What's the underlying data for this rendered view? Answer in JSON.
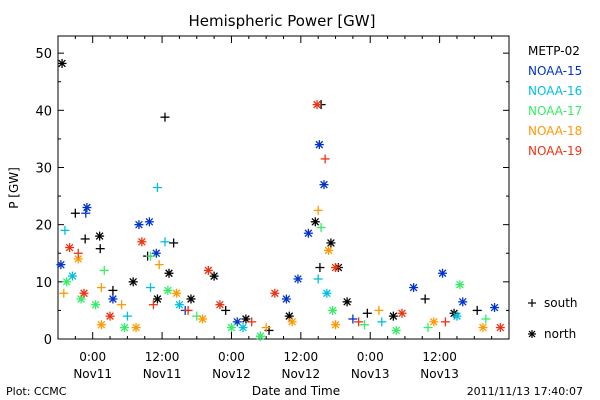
{
  "chart_data": {
    "type": "scatter",
    "title": "Hemispheric Power [GW]",
    "xlabel": "Date and Time",
    "ylabel": "P [GW]",
    "ylim": [
      0,
      53
    ],
    "xlim": [
      -6,
      72
    ],
    "x_unit": "hours from 2011-11-11 00:00 UT",
    "grid": false,
    "legend_position": "right",
    "x_ticks": [
      {
        "x": 0,
        "time": "0:00",
        "date": "Nov11"
      },
      {
        "x": 12,
        "time": "12:00",
        "date": "Nov11"
      },
      {
        "x": 24,
        "time": "0:00",
        "date": "Nov12"
      },
      {
        "x": 36,
        "time": "12:00",
        "date": "Nov12"
      },
      {
        "x": 48,
        "time": "0:00",
        "date": "Nov13"
      },
      {
        "x": 60,
        "time": "12:00",
        "date": "Nov13"
      }
    ],
    "y_ticks": [
      0,
      10,
      20,
      30,
      40,
      50
    ],
    "markers": [
      {
        "symbol": "+",
        "label": "south"
      },
      {
        "symbol": "*",
        "label": "north"
      }
    ],
    "series": [
      {
        "name": "METP-02",
        "color": "#000000",
        "points": [
          {
            "x": -5.3,
            "y": 48.2,
            "h": "north"
          },
          {
            "x": -3.0,
            "y": 22.0,
            "h": "south"
          },
          {
            "x": -1.3,
            "y": 17.5,
            "h": "south"
          },
          {
            "x": 1.2,
            "y": 18.0,
            "h": "north"
          },
          {
            "x": 1.3,
            "y": 15.8,
            "h": "south"
          },
          {
            "x": 3.5,
            "y": 8.5,
            "h": "south"
          },
          {
            "x": 7.0,
            "y": 10.0,
            "h": "north"
          },
          {
            "x": 9.5,
            "y": 14.5,
            "h": "south"
          },
          {
            "x": 11.2,
            "y": 7.0,
            "h": "north"
          },
          {
            "x": 12.5,
            "y": 38.8,
            "h": "south"
          },
          {
            "x": 13.2,
            "y": 11.5,
            "h": "north"
          },
          {
            "x": 14.0,
            "y": 16.8,
            "h": "south"
          },
          {
            "x": 17.0,
            "y": 7.0,
            "h": "north"
          },
          {
            "x": 21.0,
            "y": 11.0,
            "h": "north"
          },
          {
            "x": 23.0,
            "y": 5.0,
            "h": "south"
          },
          {
            "x": 26.5,
            "y": 3.5,
            "h": "north"
          },
          {
            "x": 30.5,
            "y": 1.5,
            "h": "south"
          },
          {
            "x": 34.0,
            "y": 4.0,
            "h": "north"
          },
          {
            "x": 38.5,
            "y": 20.5,
            "h": "north"
          },
          {
            "x": 39.5,
            "y": 41.0,
            "h": "south"
          },
          {
            "x": 39.3,
            "y": 12.5,
            "h": "south"
          },
          {
            "x": 41.2,
            "y": 16.8,
            "h": "north"
          },
          {
            "x": 42.5,
            "y": 12.5,
            "h": "north"
          },
          {
            "x": 44.0,
            "y": 6.5,
            "h": "north"
          },
          {
            "x": 47.5,
            "y": 4.5,
            "h": "south"
          },
          {
            "x": 52.0,
            "y": 4.0,
            "h": "north"
          },
          {
            "x": 57.5,
            "y": 7.0,
            "h": "south"
          },
          {
            "x": 62.5,
            "y": 4.5,
            "h": "north"
          },
          {
            "x": 66.5,
            "y": 5.0,
            "h": "south"
          }
        ]
      },
      {
        "name": "NOAA-15",
        "color": "#0033cc",
        "points": [
          {
            "x": -5.5,
            "y": 13.0,
            "h": "north"
          },
          {
            "x": -1.2,
            "y": 22.0,
            "h": "south"
          },
          {
            "x": -1.0,
            "y": 23.0,
            "h": "north"
          },
          {
            "x": 3.5,
            "y": 7.0,
            "h": "north"
          },
          {
            "x": 8.0,
            "y": 20.0,
            "h": "north"
          },
          {
            "x": 9.8,
            "y": 20.5,
            "h": "north"
          },
          {
            "x": 11.0,
            "y": 15.0,
            "h": "north"
          },
          {
            "x": 16.0,
            "y": 5.0,
            "h": "south"
          },
          {
            "x": 25.0,
            "y": 3.0,
            "h": "north"
          },
          {
            "x": 33.5,
            "y": 7.0,
            "h": "north"
          },
          {
            "x": 35.5,
            "y": 10.5,
            "h": "north"
          },
          {
            "x": 37.3,
            "y": 18.5,
            "h": "north"
          },
          {
            "x": 39.2,
            "y": 34.0,
            "h": "north"
          },
          {
            "x": 40.0,
            "y": 27.0,
            "h": "north"
          },
          {
            "x": 45.0,
            "y": 3.5,
            "h": "south"
          },
          {
            "x": 55.5,
            "y": 9.0,
            "h": "north"
          },
          {
            "x": 60.5,
            "y": 11.5,
            "h": "north"
          },
          {
            "x": 64.0,
            "y": 6.5,
            "h": "north"
          },
          {
            "x": 69.5,
            "y": 5.5,
            "h": "north"
          }
        ]
      },
      {
        "name": "NOAA-16",
        "color": "#00c0e0",
        "points": [
          {
            "x": -4.8,
            "y": 19.0,
            "h": "south"
          },
          {
            "x": -3.5,
            "y": 11.0,
            "h": "north"
          },
          {
            "x": 6.0,
            "y": 4.0,
            "h": "south"
          },
          {
            "x": 10.0,
            "y": 9.0,
            "h": "south"
          },
          {
            "x": 11.2,
            "y": 26.5,
            "h": "south"
          },
          {
            "x": 12.5,
            "y": 17.0,
            "h": "south"
          },
          {
            "x": 15.0,
            "y": 6.0,
            "h": "north"
          },
          {
            "x": 26.0,
            "y": 2.0,
            "h": "north"
          },
          {
            "x": 29.0,
            "y": 0.5,
            "h": "south"
          },
          {
            "x": 39.0,
            "y": 10.5,
            "h": "south"
          },
          {
            "x": 40.5,
            "y": 8.0,
            "h": "north"
          },
          {
            "x": 50.0,
            "y": 3.0,
            "h": "south"
          },
          {
            "x": 63.0,
            "y": 4.0,
            "h": "north"
          }
        ]
      },
      {
        "name": "NOAA-17",
        "color": "#33ee66",
        "points": [
          {
            "x": -4.5,
            "y": 10.0,
            "h": "north"
          },
          {
            "x": -2.0,
            "y": 7.0,
            "h": "north"
          },
          {
            "x": 0.5,
            "y": 6.0,
            "h": "north"
          },
          {
            "x": 2.0,
            "y": 12.0,
            "h": "south"
          },
          {
            "x": 5.5,
            "y": 2.0,
            "h": "north"
          },
          {
            "x": 10.0,
            "y": 14.5,
            "h": "south"
          },
          {
            "x": 13.0,
            "y": 8.5,
            "h": "north"
          },
          {
            "x": 18.0,
            "y": 4.0,
            "h": "south"
          },
          {
            "x": 24.0,
            "y": 2.0,
            "h": "north"
          },
          {
            "x": 29.0,
            "y": 0.5,
            "h": "north"
          },
          {
            "x": 39.5,
            "y": 19.5,
            "h": "south"
          },
          {
            "x": 41.5,
            "y": 5.0,
            "h": "north"
          },
          {
            "x": 47.0,
            "y": 2.5,
            "h": "south"
          },
          {
            "x": 52.5,
            "y": 1.5,
            "h": "north"
          },
          {
            "x": 58.0,
            "y": 2.0,
            "h": "south"
          },
          {
            "x": 63.5,
            "y": 9.5,
            "h": "north"
          },
          {
            "x": 68.0,
            "y": 3.5,
            "h": "south"
          }
        ]
      },
      {
        "name": "NOAA-18",
        "color": "#ff9900",
        "points": [
          {
            "x": -5.0,
            "y": 8.0,
            "h": "south"
          },
          {
            "x": -2.5,
            "y": 14.0,
            "h": "north"
          },
          {
            "x": 1.5,
            "y": 9.0,
            "h": "south"
          },
          {
            "x": 1.5,
            "y": 2.5,
            "h": "north"
          },
          {
            "x": 5.0,
            "y": 6.0,
            "h": "south"
          },
          {
            "x": 7.5,
            "y": 2.0,
            "h": "north"
          },
          {
            "x": 11.5,
            "y": 13.0,
            "h": "south"
          },
          {
            "x": 14.5,
            "y": 8.0,
            "h": "north"
          },
          {
            "x": 19.0,
            "y": 3.5,
            "h": "north"
          },
          {
            "x": 30.0,
            "y": 2.0,
            "h": "south"
          },
          {
            "x": 34.5,
            "y": 3.0,
            "h": "north"
          },
          {
            "x": 39.0,
            "y": 22.5,
            "h": "south"
          },
          {
            "x": 40.8,
            "y": 15.5,
            "h": "north"
          },
          {
            "x": 42.0,
            "y": 2.5,
            "h": "north"
          },
          {
            "x": 49.5,
            "y": 5.0,
            "h": "south"
          },
          {
            "x": 59.0,
            "y": 3.0,
            "h": "north"
          },
          {
            "x": 67.5,
            "y": 2.0,
            "h": "north"
          }
        ]
      },
      {
        "name": "NOAA-19",
        "color": "#ee3311",
        "points": [
          {
            "x": -4.0,
            "y": 16.0,
            "h": "north"
          },
          {
            "x": -2.5,
            "y": 15.0,
            "h": "south"
          },
          {
            "x": -1.5,
            "y": 8.0,
            "h": "north"
          },
          {
            "x": 3.0,
            "y": 4.0,
            "h": "north"
          },
          {
            "x": 8.5,
            "y": 17.0,
            "h": "north"
          },
          {
            "x": 10.5,
            "y": 6.0,
            "h": "south"
          },
          {
            "x": 16.5,
            "y": 5.0,
            "h": "south"
          },
          {
            "x": 20.0,
            "y": 12.0,
            "h": "north"
          },
          {
            "x": 22.0,
            "y": 6.0,
            "h": "north"
          },
          {
            "x": 27.5,
            "y": 3.0,
            "h": "south"
          },
          {
            "x": 31.5,
            "y": 8.0,
            "h": "north"
          },
          {
            "x": 38.8,
            "y": 41.0,
            "h": "north"
          },
          {
            "x": 40.2,
            "y": 31.5,
            "h": "south"
          },
          {
            "x": 42.0,
            "y": 12.5,
            "h": "north"
          },
          {
            "x": 46.0,
            "y": 3.0,
            "h": "south"
          },
          {
            "x": 53.5,
            "y": 4.5,
            "h": "north"
          },
          {
            "x": 61.0,
            "y": 3.0,
            "h": "south"
          },
          {
            "x": 70.5,
            "y": 2.0,
            "h": "north"
          }
        ]
      }
    ]
  },
  "footer": {
    "plot_credit": "Plot: CCMC",
    "timestamp": "2011/11/13 17:40:07"
  }
}
